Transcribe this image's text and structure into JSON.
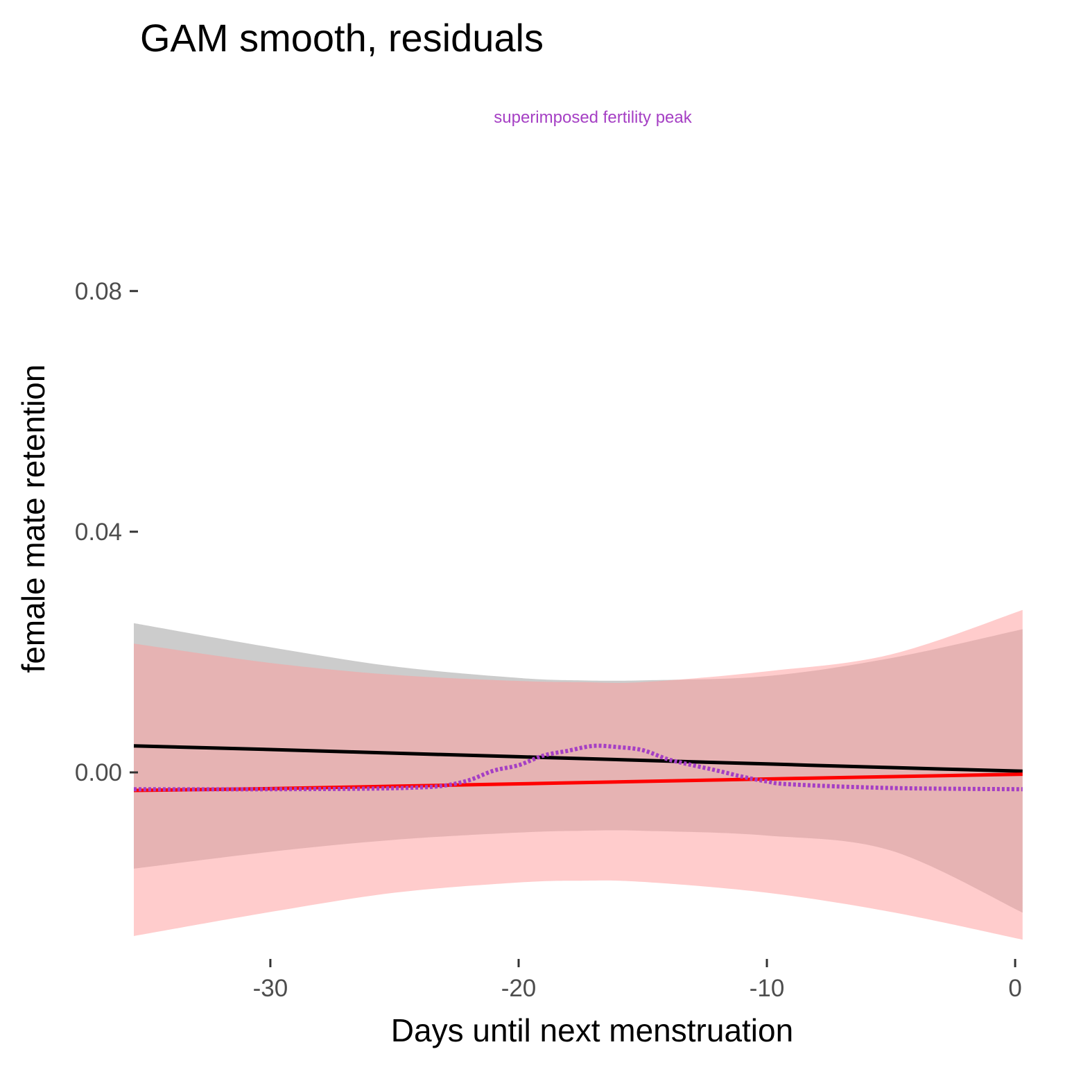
{
  "chart_data": {
    "type": "line",
    "title": "GAM smooth, residuals",
    "xlabel": "Days until next menstruation",
    "ylabel": "female mate retention",
    "xlim": [
      -35.5,
      0.5
    ],
    "ylim": [
      -0.031,
      0.0885
    ],
    "x_ticks": [
      {
        "value": -30,
        "label": "-30"
      },
      {
        "value": -20,
        "label": "-20"
      },
      {
        "value": -10,
        "label": "-10"
      },
      {
        "value": 0,
        "label": "0"
      }
    ],
    "y_ticks": [
      {
        "value": 0.08,
        "label": "0.08"
      },
      {
        "value": 0.04,
        "label": "0.04"
      },
      {
        "value": 0.0,
        "label": "0.00"
      }
    ],
    "grid": false,
    "legend": "none",
    "annotation": {
      "text": "superimposed fertility peak",
      "color": "#a53fc4"
    },
    "series": [
      {
        "style": "solid",
        "color": "#000000",
        "band_color": "#999999",
        "x": [
          -35.5,
          -30,
          -25,
          -20,
          -17.5,
          -15,
          -10,
          -5,
          0.3
        ],
        "y": [
          0.0044,
          0.0038,
          0.0032,
          0.0026,
          0.0023,
          0.002,
          0.0014,
          0.0008,
          0.0002
        ],
        "lower": [
          -0.016,
          -0.0132,
          -0.0112,
          -0.01,
          -0.0097,
          -0.0097,
          -0.0105,
          -0.013,
          -0.0233
        ],
        "upper": [
          0.0248,
          0.0208,
          0.0176,
          0.0157,
          0.0153,
          0.0153,
          0.016,
          0.019,
          0.0238
        ]
      },
      {
        "style": "solid",
        "color": "#ff0000",
        "band_color": "#ff9999",
        "x": [
          -35.5,
          -30,
          -25,
          -20,
          -17.5,
          -15,
          -10,
          -5,
          0.3
        ],
        "y": [
          -0.003,
          -0.0027,
          -0.0023,
          -0.0019,
          -0.0017,
          -0.0015,
          -0.0011,
          -0.0007,
          -0.0003
        ],
        "lower": [
          -0.0272,
          -0.0232,
          -0.02,
          -0.0183,
          -0.018,
          -0.0182,
          -0.02,
          -0.0232,
          -0.0278
        ],
        "upper": [
          0.0214,
          0.0182,
          0.0162,
          0.0152,
          0.015,
          0.015,
          0.0168,
          0.0196,
          0.027
        ]
      },
      {
        "style": "dotted",
        "color": "#a53fc4",
        "x": [
          -35.5,
          -30,
          -26,
          -24,
          -23,
          -22,
          -21,
          -20,
          -19,
          -18,
          -17,
          -16,
          -15,
          -14,
          -13,
          -12,
          -11,
          -10,
          -9,
          -5,
          0.3
        ],
        "y": [
          -0.0028,
          -0.0028,
          -0.0027,
          -0.0025,
          -0.0022,
          -0.0013,
          0.0003,
          0.0012,
          0.0028,
          0.0036,
          0.0044,
          0.0042,
          0.0037,
          0.0022,
          0.0012,
          0.0003,
          -0.0007,
          -0.0015,
          -0.002,
          -0.0026,
          -0.0028
        ]
      }
    ]
  }
}
